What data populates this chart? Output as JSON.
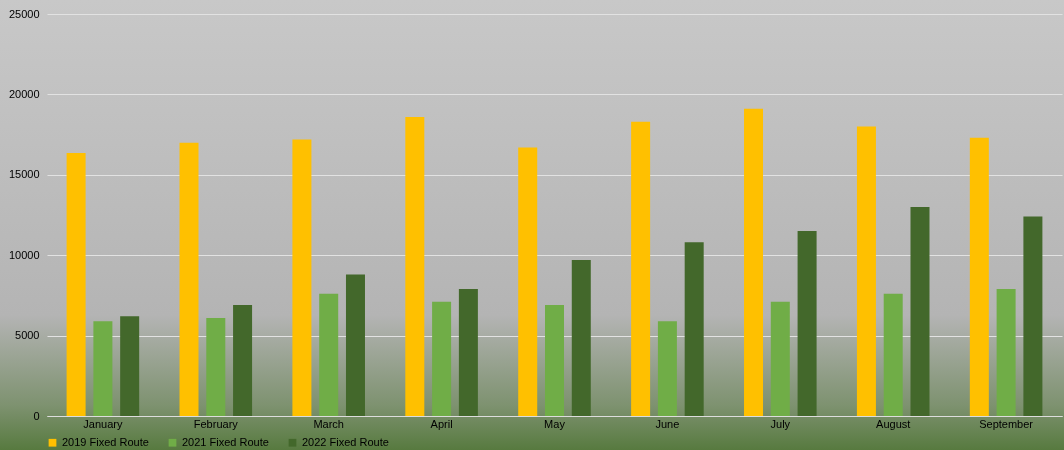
{
  "chart_data": {
    "type": "bar",
    "categories": [
      "January",
      "February",
      "March",
      "April",
      "May",
      "June",
      "July",
      "August",
      "September"
    ],
    "series": [
      {
        "name": "2019 Fixed Route",
        "color": "#ffc000",
        "values": [
          16350,
          17000,
          17200,
          18600,
          16700,
          18300,
          19100,
          18000,
          17300
        ]
      },
      {
        "name": "2021 Fixed Route",
        "color": "#70ad47",
        "values": [
          5900,
          6100,
          7600,
          7100,
          6900,
          5900,
          7100,
          7600,
          7900
        ]
      },
      {
        "name": "2022 Fixed Route",
        "color": "#43682b",
        "values": [
          6200,
          6900,
          8800,
          7900,
          9700,
          10800,
          11500,
          13000,
          12400
        ]
      }
    ],
    "ylim": [
      0,
      25000
    ],
    "yticks": [
      0,
      5000,
      10000,
      15000,
      20000,
      25000
    ],
    "grid": "y",
    "legend": "bottom"
  }
}
